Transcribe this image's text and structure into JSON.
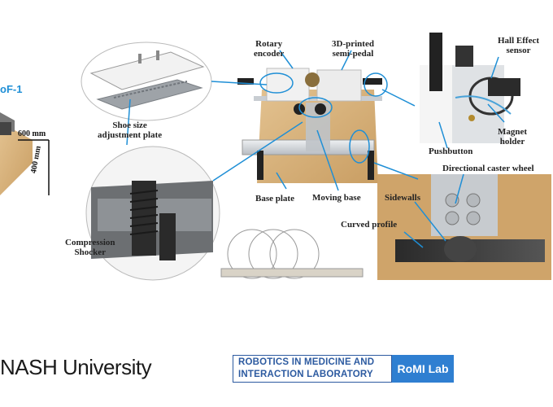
{
  "left_fragment": {
    "label": "oF-1",
    "dim_width": "600 mm",
    "dim_depth": "400 mm"
  },
  "labels": {
    "rotary_encoder": "Rotary\nencoder",
    "semi_pedal": "3D-printed\nsemi-pedal",
    "hall_sensor": "Hall Effect\nsensor",
    "shoe_plate": "Shoe size\nadjustment plate",
    "pushbutton": "Pushbutton",
    "magnet_holder": "Magnet\nholder",
    "caster_wheel": "Directional caster wheel",
    "base_plate": "Base plate",
    "moving_base": "Moving base",
    "sidewalls": "Sidewalls",
    "curved_profile": "Curved profile",
    "compression_shocker": "Compression\nShocker"
  },
  "footer": {
    "university": "NASH University",
    "lab_line1": "ROBOTICS IN MEDICINE AND",
    "lab_line2": "INTERACTION LABORATORY",
    "lab_tag": "RoMI Lab"
  },
  "colors": {
    "accent": "#1f8fd6",
    "romi_blue": "#2c5aa0",
    "romi_tag": "#2f7fd1",
    "wood": "#d9b47f"
  }
}
